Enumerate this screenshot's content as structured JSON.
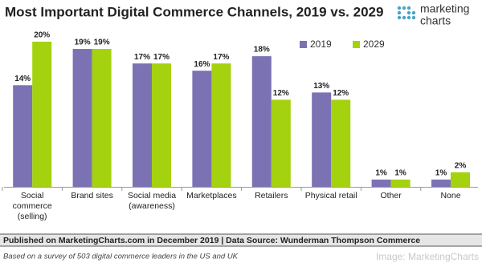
{
  "chart_data": {
    "type": "bar",
    "title": "Most Important Digital Commerce Channels, 2019 vs. 2029",
    "logo": {
      "line1": "marketing",
      "line2": "charts"
    },
    "categories": [
      "Social commerce (selling)",
      "Brand sites",
      "Social media (awareness)",
      "Marketplaces",
      "Retailers",
      "Physical retail",
      "Other",
      "None"
    ],
    "series": [
      {
        "name": "2019",
        "color": "#7b72b4",
        "values": [
          14,
          19,
          17,
          16,
          18,
          13,
          1,
          1
        ],
        "value_labels": [
          "14%",
          "19%",
          "17%",
          "16%",
          "18%",
          "13%",
          "1%",
          "1%"
        ]
      },
      {
        "name": "2029",
        "color": "#a4d20e",
        "values": [
          20,
          19,
          17,
          17,
          12,
          12,
          1,
          2
        ],
        "value_labels": [
          "20%",
          "19%",
          "17%",
          "17%",
          "12%",
          "12%",
          "1%",
          "2%"
        ]
      }
    ],
    "footer": {
      "source": "Published on MarketingCharts.com in December 2019 | Data Source: Wunderman Thompson Commerce",
      "note": "Based on a survey of 503 digital commerce leaders in the US and UK",
      "credit": "Image: MarketingCharts"
    }
  }
}
